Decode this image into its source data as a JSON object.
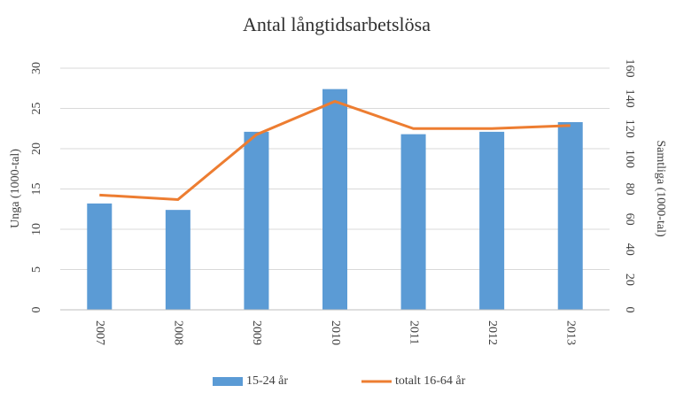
{
  "chart_data": {
    "type": "bar",
    "title": "Antal långtidsarbetslösa",
    "categories": [
      "2007",
      "2008",
      "2009",
      "2010",
      "2011",
      "2012",
      "2013"
    ],
    "series": [
      {
        "name": "15-24 år",
        "type": "bar",
        "axis": "y",
        "color": "#5b9bd5",
        "values": [
          13.2,
          12.4,
          22.1,
          27.4,
          21.8,
          22.1,
          23.3
        ]
      },
      {
        "name": "totalt 16-64 år",
        "type": "line",
        "axis": "y2",
        "color": "#ed7d31",
        "values": [
          76,
          73,
          116,
          138,
          120,
          120,
          122
        ]
      }
    ],
    "ylabel": "Unga (1000-tal)",
    "y2label": "Samtliga (1000-tal)",
    "ylim": [
      0,
      30
    ],
    "yticks": [
      0,
      5,
      10,
      15,
      20,
      25,
      30
    ],
    "y2lim": [
      0,
      160
    ],
    "y2ticks": [
      0,
      20,
      40,
      60,
      80,
      100,
      120,
      140,
      160
    ],
    "grid": true,
    "legend": "bottom"
  }
}
